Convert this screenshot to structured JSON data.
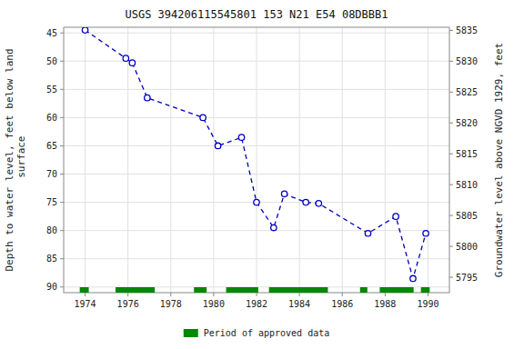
{
  "chart_data": {
    "type": "line",
    "title": "USGS 394206115545801 153  N21 E54 08DBBB1",
    "y_label": "Depth to water level, feet below land\n surface",
    "y2_label": "Groundwater level above NGVD 1929, feet",
    "x": [
      1974.0,
      1975.9,
      1976.2,
      1976.9,
      1979.5,
      1980.2,
      1981.3,
      1982.0,
      1982.8,
      1983.3,
      1984.3,
      1984.9,
      1987.2,
      1988.5,
      1989.3,
      1989.9
    ],
    "series": [
      {
        "type": "line",
        "color": "#0000bb",
        "line_style": "dashed",
        "marker": "circle",
        "values": [
          44.5,
          49.5,
          50.3,
          56.5,
          60.0,
          65.0,
          63.5,
          75.0,
          79.5,
          73.5,
          75.0,
          75.2,
          80.5,
          77.5,
          88.5,
          80.5
        ]
      },
      {
        "type": "range_bar",
        "name": "Period of approved data",
        "color": "#008800",
        "ranges": [
          [
            1973.75,
            1974.17
          ],
          [
            1975.42,
            1977.25
          ],
          [
            1979.08,
            1979.67
          ],
          [
            1980.58,
            1982.08
          ],
          [
            1982.58,
            1985.33
          ],
          [
            1986.83,
            1987.17
          ],
          [
            1987.75,
            1989.33
          ],
          [
            1989.67,
            1990.08
          ]
        ]
      }
    ],
    "xlim": [
      1973,
      1991
    ],
    "xticks": [
      1974,
      1976,
      1978,
      1980,
      1982,
      1984,
      1986,
      1988,
      1990
    ],
    "ylim": [
      91,
      44
    ],
    "yticks": [
      45,
      50,
      55,
      60,
      65,
      70,
      75,
      80,
      85,
      90
    ],
    "y2lim": [
      5792.5,
      5835.5
    ],
    "y2ticks": [
      5795,
      5800,
      5805,
      5810,
      5815,
      5820,
      5825,
      5830,
      5835
    ],
    "grid": true,
    "legend": "bottom"
  }
}
